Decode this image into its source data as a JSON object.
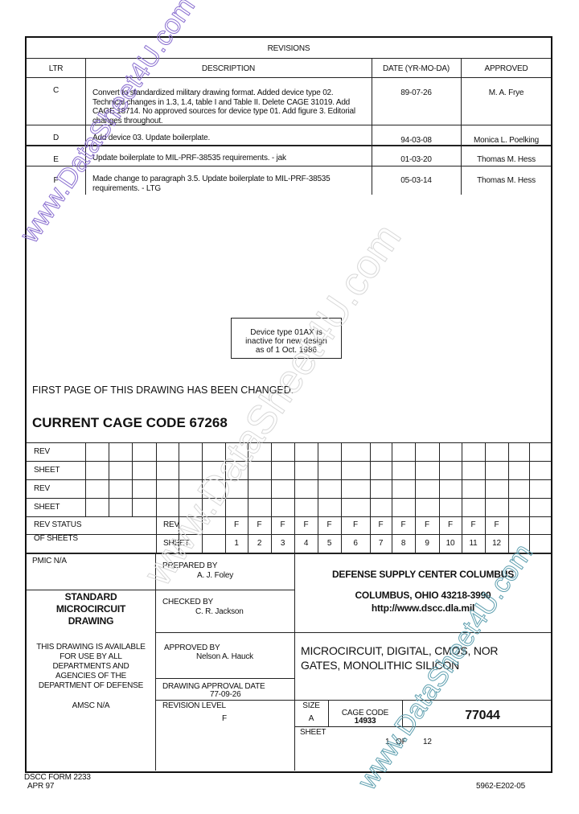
{
  "revisions": {
    "title": "REVISIONS",
    "headers": [
      "LTR",
      "DESCRIPTION",
      "DATE (YR-MO-DA)",
      "APPROVED"
    ],
    "rows": [
      {
        "ltr": "C",
        "desc": "Convert to standardized military drawing format.  Added device type 02. Technical changes in 1.3, 1.4, table I and Table II.  Delete CAGE 31019.  Add CAGE 18714.  No approved sources for device type 01.  Add figure 3.  Editorial changes throughout.",
        "date": "89-07-26",
        "approved": "M. A. Frye"
      },
      {
        "ltr": "D",
        "desc": "Add device 03.  Update boilerplate.",
        "date": "94-03-08",
        "approved": "Monica L. Poelking"
      },
      {
        "ltr": "E",
        "desc": "Update boilerplate to MIL-PRF-38535 requirements. - jak",
        "date": "01-03-20",
        "approved": "Thomas M. Hess"
      },
      {
        "ltr": "F",
        "desc": "Made change to paragraph 3.5.  Update boilerplate to MIL-PRF-38535 requirements. - LTG",
        "date": "05-03-14",
        "approved": "Thomas M. Hess"
      }
    ]
  },
  "notice": "Device type 01AX is inactive for new design as of 1 Oct. 1986",
  "first_page_changed": "FIRST PAGE OF THIS DRAWING HAS BEEN CHANGED.",
  "cage_code_heading": "CURRENT CAGE CODE 67268",
  "rev_grid": {
    "labels": [
      "REV",
      "SHEET",
      "REV",
      "SHEET"
    ]
  },
  "rev_status": {
    "label1": "REV STATUS",
    "label2": "OF SHEETS",
    "rev_label": "REV",
    "sheet_label": "SHEET",
    "revs": [
      "F",
      "F",
      "F",
      "F",
      "F",
      "F",
      "F",
      "F",
      "F",
      "F",
      "F",
      "F"
    ],
    "sheets": [
      "1",
      "2",
      "3",
      "4",
      "5",
      "6",
      "7",
      "8",
      "9",
      "10",
      "11",
      "12"
    ]
  },
  "title_block": {
    "pmic": "PMIC N/A",
    "std_title": "STANDARD MICROCIRCUIT DRAWING",
    "availability": "THIS DRAWING IS AVAILABLE FOR USE BY ALL DEPARTMENTS AND AGENCIES OF THE DEPARTMENT OF DEFENSE",
    "amsc": "AMSC N/A",
    "prepared_label": "PREPARED BY",
    "prepared": "A. J. Foley",
    "checked_label": "CHECKED BY",
    "checked": "C. R. Jackson",
    "approved_label": "APPROVED BY",
    "approved": "Nelson A. Hauck",
    "approval_date_label": "DRAWING APPROVAL DATE",
    "approval_date": "77-09-26",
    "revision_level_label": "REVISION LEVEL",
    "revision_level": "F",
    "org": "DEFENSE SUPPLY CENTER COLUMBUS",
    "city": "COLUMBUS, OHIO  43218-3990",
    "url": "http://www.dscc.dla.mil",
    "doc_title": "MICROCIRCUIT, DIGITAL, CMOS, NOR GATES, MONOLITHIC SILICON",
    "size_label": "SIZE",
    "size": "A",
    "cage_label": "CAGE CODE",
    "cage": "14933",
    "doc_number": "77044",
    "sheet_label": "SHEET",
    "sheet": "1",
    "of": "OF",
    "sheet_total": "12"
  },
  "footer": {
    "form": "DSCC FORM 2233",
    "form_date": "APR 97",
    "doc_id": "5962-E202-05"
  },
  "watermark": "www.DataSheet4U.com"
}
